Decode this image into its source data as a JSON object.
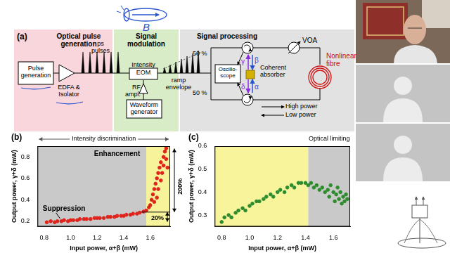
{
  "handwriting": "B",
  "diagram": {
    "panel_label": "(a)",
    "sections": [
      {
        "title": "Optical pulse generation",
        "color": "#f8d6db"
      },
      {
        "title": "Signal modulation",
        "color": "#d8ecc8"
      },
      {
        "title": "Signal processing",
        "color": "#e2e2e2"
      }
    ],
    "boxes": {
      "pulse_generation": "Pulse generation",
      "eom": "Intensity EOM",
      "waveform_generator": "Waveform generator",
      "oscilloscope": "Oscillo-scope"
    },
    "labels": {
      "amplifier": "EDFA & Isolator",
      "pulses": "ps pulses",
      "rf": "RF ampl.",
      "envelope": "ramp envelope",
      "split_top": "50 %",
      "split_bottom": "50 %",
      "absorber": "Coherent absorber",
      "voa": "VOA",
      "fibre": "Nonlinear fibre",
      "high": "High power",
      "low": "Low power"
    },
    "beams": {
      "gamma": "γ",
      "beta": "β",
      "delta": "δ",
      "alpha": "α"
    }
  },
  "chart_data": [
    {
      "type": "scatter",
      "panel_label": "(b)",
      "title": "Intensity discrimination",
      "x_label": "Input power, α+β (mW)",
      "y_label": "Output power, γ+δ (mW)",
      "color": "#e0231b",
      "marker": "circle",
      "x": [
        0.82,
        0.85,
        0.88,
        0.9,
        0.93,
        0.95,
        0.98,
        1.0,
        1.02,
        1.05,
        1.07,
        1.1,
        1.12,
        1.15,
        1.18,
        1.2,
        1.22,
        1.25,
        1.28,
        1.3,
        1.33,
        1.35,
        1.38,
        1.4,
        1.42,
        1.45,
        1.47,
        1.5,
        1.52,
        1.55,
        1.57,
        1.59,
        1.6,
        1.61,
        1.62,
        1.63,
        1.63,
        1.64,
        1.65,
        1.65,
        1.66,
        1.66,
        1.67,
        1.68,
        1.68,
        1.69,
        1.7,
        1.7,
        1.71,
        1.72,
        1.72,
        1.73
      ],
      "values": [
        0.19,
        0.2,
        0.19,
        0.2,
        0.2,
        0.21,
        0.2,
        0.21,
        0.21,
        0.21,
        0.22,
        0.22,
        0.22,
        0.22,
        0.23,
        0.23,
        0.23,
        0.23,
        0.24,
        0.24,
        0.24,
        0.25,
        0.25,
        0.25,
        0.26,
        0.26,
        0.27,
        0.27,
        0.28,
        0.29,
        0.3,
        0.33,
        0.35,
        0.4,
        0.45,
        0.38,
        0.5,
        0.55,
        0.42,
        0.6,
        0.65,
        0.5,
        0.7,
        0.58,
        0.75,
        0.65,
        0.8,
        0.72,
        0.85,
        0.78,
        0.88,
        0.7
      ],
      "xlim": [
        0.75,
        1.75
      ],
      "xticks": [
        0.8,
        {
          "value": 1,
          "label": "1.0"
        },
        1.2,
        1.4,
        1.6
      ],
      "ylim": [
        0.15,
        0.9
      ],
      "yticks": [
        0.2,
        0.4,
        0.6,
        0.8
      ],
      "grid": false,
      "regions": [
        {
          "from": 0.75,
          "to": 1.57,
          "color": "#c9c9c9"
        },
        {
          "from": 1.57,
          "to": 1.75,
          "color": "#f6f39a"
        }
      ],
      "annotations": {
        "enhancement": "Enhancement",
        "suppression": "Suppression",
        "range_high": "200%",
        "range_low": "20%"
      }
    },
    {
      "type": "scatter",
      "panel_label": "(c)",
      "x_label": "Input power, α+β (mW)",
      "y_label": "Output power, γ+δ (mW)",
      "color": "#2e8b2e",
      "marker": "circle",
      "x": [
        0.8,
        0.82,
        0.85,
        0.87,
        0.9,
        0.92,
        0.95,
        0.97,
        1.0,
        1.02,
        1.05,
        1.07,
        1.1,
        1.12,
        1.15,
        1.17,
        1.2,
        1.22,
        1.25,
        1.27,
        1.3,
        1.32,
        1.35,
        1.37,
        1.4,
        1.42,
        1.44,
        1.46,
        1.48,
        1.5,
        1.52,
        1.54,
        1.56,
        1.57,
        1.58,
        1.6,
        1.61,
        1.62,
        1.63,
        1.64,
        1.65,
        1.66,
        1.67,
        1.68,
        1.69,
        1.7
      ],
      "values": [
        0.27,
        0.29,
        0.3,
        0.29,
        0.31,
        0.32,
        0.33,
        0.32,
        0.34,
        0.35,
        0.36,
        0.36,
        0.37,
        0.38,
        0.39,
        0.38,
        0.4,
        0.41,
        0.4,
        0.42,
        0.43,
        0.42,
        0.44,
        0.44,
        0.44,
        0.43,
        0.44,
        0.42,
        0.43,
        0.41,
        0.42,
        0.4,
        0.41,
        0.38,
        0.43,
        0.4,
        0.36,
        0.39,
        0.42,
        0.37,
        0.4,
        0.35,
        0.38,
        0.36,
        0.39,
        0.37
      ],
      "xlim": [
        0.75,
        1.72
      ],
      "xticks": [
        0.8,
        {
          "value": 1,
          "label": "1.0"
        },
        1.2,
        1.4,
        1.6
      ],
      "ylim": [
        0.25,
        0.6
      ],
      "yticks": [
        0.3,
        0.4,
        0.5,
        0.6
      ],
      "grid": false,
      "regions": [
        {
          "from": 0.75,
          "to": 1.42,
          "color": "#f7f49b"
        },
        {
          "from": 1.42,
          "to": 1.72,
          "color": "#c9c9c9",
          "label": "Optical limiting"
        }
      ]
    }
  ]
}
